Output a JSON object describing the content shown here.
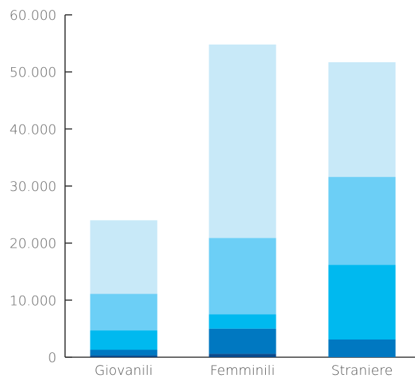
{
  "chart_data": {
    "type": "bar",
    "stacked": true,
    "categories": [
      "Giovanili",
      "Femminili",
      "Straniere"
    ],
    "series": [
      {
        "color": "#0a4a8c",
        "values": [
          300,
          600,
          0
        ]
      },
      {
        "color": "#0078c1",
        "values": [
          1000,
          4400,
          3100
        ]
      },
      {
        "color": "#00b9ef",
        "values": [
          3400,
          2500,
          13100
        ]
      },
      {
        "color": "#6ccff6",
        "values": [
          6400,
          13400,
          15400
        ]
      },
      {
        "color": "#c8e9f8",
        "values": [
          12900,
          33900,
          20100
        ]
      }
    ],
    "yticks": [
      0,
      10000,
      20000,
      30000,
      40000,
      50000,
      60000
    ],
    "ytick_labels": [
      "0",
      "10.000",
      "20.000",
      "30.000",
      "40.000",
      "50.000",
      "60.000"
    ],
    "ylim": [
      0,
      60000
    ],
    "grid": false,
    "legend": "none",
    "title": "",
    "xlabel": "",
    "ylabel": ""
  }
}
